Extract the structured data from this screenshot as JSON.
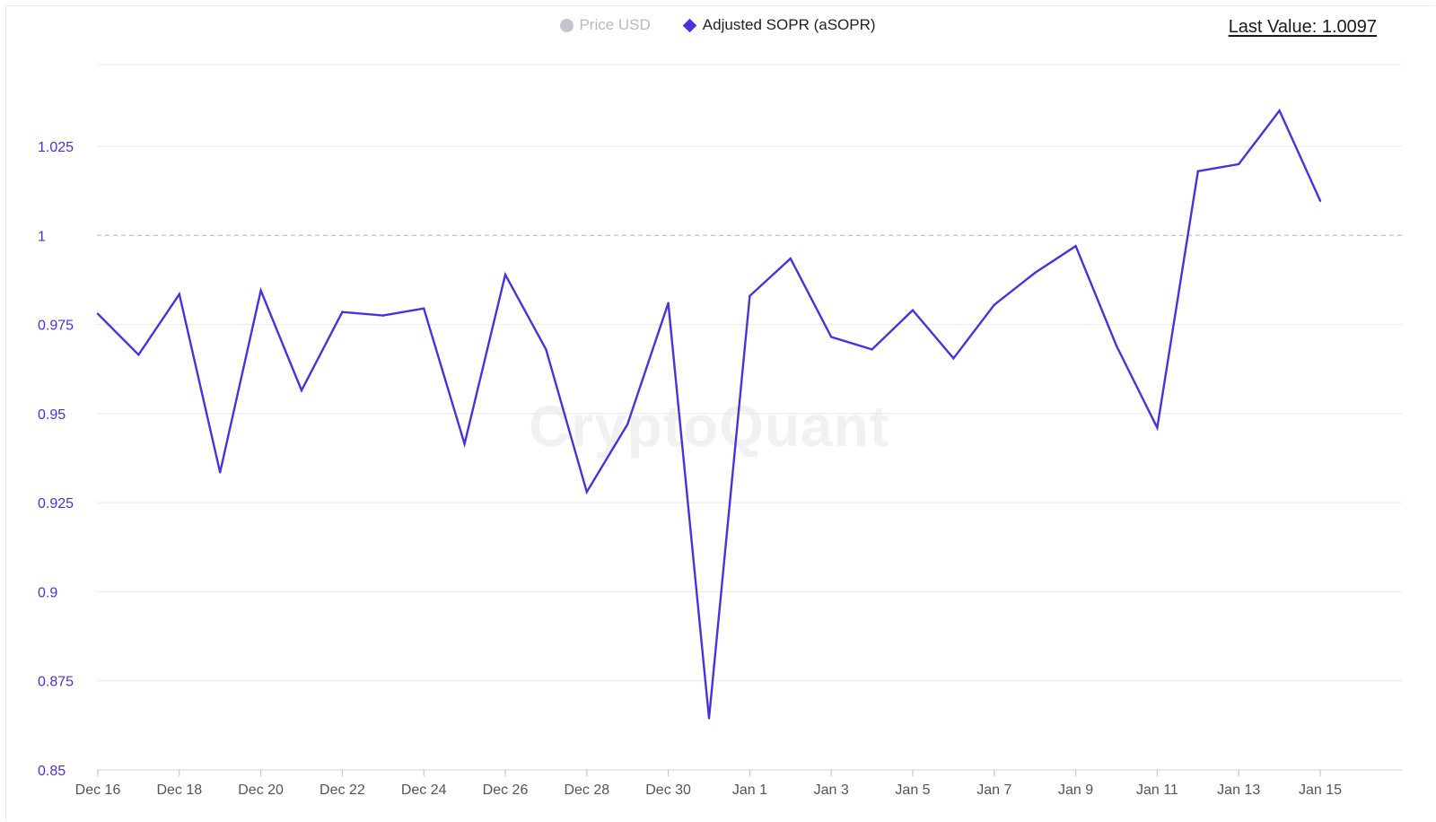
{
  "legend": {
    "items": [
      {
        "label": "Price USD",
        "icon": "circle-icon",
        "active": false
      },
      {
        "label": "Adjusted SOPR (aSOPR)",
        "icon": "diamond-icon",
        "active": true
      }
    ]
  },
  "last_value_text": "Last Value: 1.0097",
  "watermark": "CryptoQuant",
  "colors": {
    "series": "#4b2fe0",
    "grid": "#e8e8e8",
    "baseline": "#b5b5b5",
    "axis_text": "#4b2fe0"
  },
  "chart_data": {
    "type": "line",
    "title": "",
    "xlabel": "",
    "ylabel": "",
    "ylim": [
      0.85,
      1.045
    ],
    "yticks": [
      0.85,
      0.875,
      0.9,
      0.925,
      0.95,
      0.975,
      1,
      1.025
    ],
    "ytick_labels": [
      "0.85",
      "0.875",
      "0.9",
      "0.925",
      "0.95",
      "0.975",
      "1",
      "1.025"
    ],
    "reference_line": 1,
    "xticks": [
      "Dec 16",
      "Dec 18",
      "Dec 20",
      "Dec 22",
      "Dec 24",
      "Dec 26",
      "Dec 28",
      "Dec 30",
      "Jan 1",
      "Jan 3",
      "Jan 5",
      "Jan 7",
      "Jan 9",
      "Jan 11",
      "Jan 13",
      "Jan 15"
    ],
    "grid": true,
    "legend_position": "top-center",
    "series": [
      {
        "name": "Adjusted SOPR (aSOPR)",
        "x": [
          "Dec 16",
          "Dec 17",
          "Dec 18",
          "Dec 19",
          "Dec 20",
          "Dec 21",
          "Dec 22",
          "Dec 23",
          "Dec 24",
          "Dec 25",
          "Dec 26",
          "Dec 27",
          "Dec 28",
          "Dec 29",
          "Dec 30",
          "Dec 31",
          "Jan 1",
          "Jan 2",
          "Jan 3",
          "Jan 4",
          "Jan 5",
          "Jan 6",
          "Jan 7",
          "Jan 8",
          "Jan 9",
          "Jan 10",
          "Jan 11",
          "Jan 12",
          "Jan 13",
          "Jan 14",
          "Jan 15"
        ],
        "values": [
          0.978,
          0.9665,
          0.9835,
          0.9335,
          0.9845,
          0.9565,
          0.9785,
          0.9775,
          0.9795,
          0.9415,
          0.989,
          0.968,
          0.928,
          0.947,
          0.981,
          0.8645,
          0.983,
          0.9935,
          0.9715,
          0.968,
          0.979,
          0.9655,
          0.9805,
          0.9895,
          0.997,
          0.969,
          0.946,
          1.018,
          1.02,
          1.035,
          1.0097
        ]
      }
    ]
  }
}
